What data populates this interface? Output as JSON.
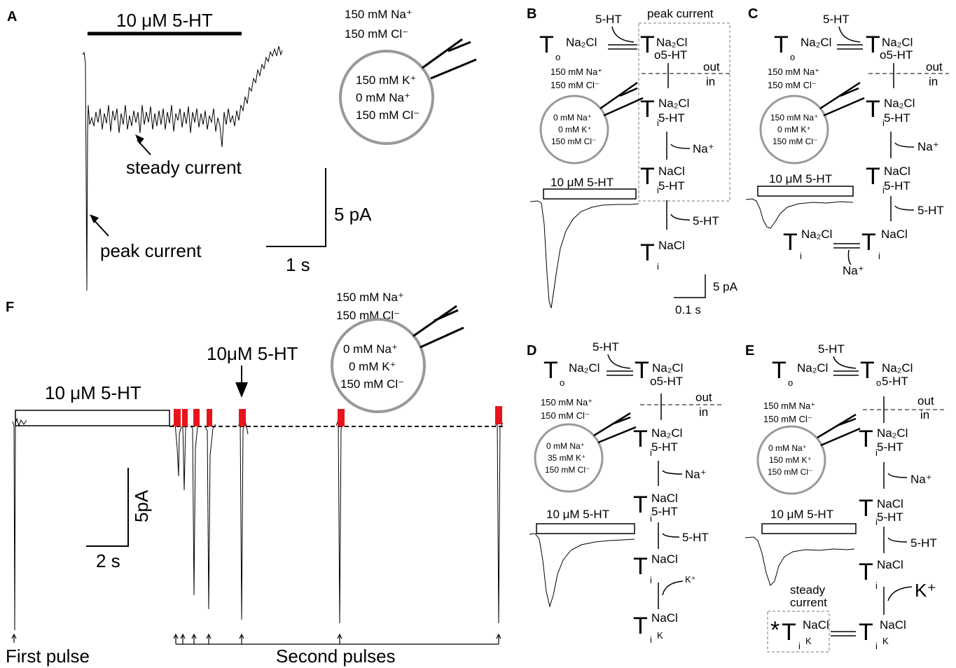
{
  "panels": {
    "A": {
      "label": "A",
      "bar_label": "10 μM 5-HT",
      "steady_label": "steady  current",
      "peak_label": "peak current",
      "scale_y": "5 pA",
      "scale_x": "1 s",
      "outside": [
        "150 mM Na⁺",
        "150 mM Cl⁻"
      ],
      "inside": [
        "150  mM K⁺",
        "0 mM Na⁺",
        "150 mM Cl⁻"
      ]
    },
    "B": {
      "label": "B",
      "peak_box_label": "peak current",
      "bar_label": "10 μM 5-HT",
      "outside": [
        "150 mM Na⁺",
        "150 mM Cl⁻"
      ],
      "inside": [
        "0 mM Na⁺",
        "0 mM K⁺",
        "150 mM Cl⁻"
      ],
      "scale_y": "5 pA",
      "scale_x": "0.1 s"
    },
    "C": {
      "label": "C",
      "bar_label": "10 μM 5-HT",
      "outside": [
        "150 mM Na⁺",
        "150 mM Cl⁻"
      ],
      "inside": [
        "150 mM Na⁺",
        "0 mM K⁺",
        "150 mM Cl⁻"
      ]
    },
    "D": {
      "label": "D",
      "bar_label": "10 μM 5-HT",
      "outside": [
        "150 mM Na⁺",
        "150 mM Cl⁻"
      ],
      "inside": [
        "0 mM Na⁺",
        "35 mM K⁺",
        "150 mM Cl⁻"
      ]
    },
    "E": {
      "label": "E",
      "bar_label": "10 μM 5-HT",
      "outside": [
        "150 mM Na⁺",
        "150 mM Cl⁻"
      ],
      "inside": [
        "0 mM Na⁺",
        "150 mM K⁺",
        "150 mM Cl⁻"
      ],
      "steady_label": [
        "steady",
        "current"
      ]
    },
    "F": {
      "label": "F",
      "bar_label": "10 μM 5-HT",
      "arrow_label": "10μM 5-HT",
      "scale_y": "5pA",
      "scale_x": "2 s",
      "first_pulse": "First pulse",
      "second_pulses": "Second pulses",
      "outside": [
        "150 mM Na⁺",
        "150 mM Cl⁻"
      ],
      "inside": [
        "0 mM Na⁺",
        "0 mM K⁺",
        "150 mM Cl⁻"
      ]
    }
  },
  "scheme": {
    "T": "T",
    "o": "o",
    "i": "i",
    "na2cl": "Na₂Cl",
    "nacl": "NaCl",
    "sht": "5-HT",
    "osht": "o5-HT",
    "k_sub": "K",
    "star": "*",
    "na": "Na⁺",
    "k": "K⁺",
    "out": "out",
    "in": "in"
  },
  "colors": {
    "trace": "#000000",
    "pulse": "#e8141c",
    "membrane": "#999999"
  }
}
